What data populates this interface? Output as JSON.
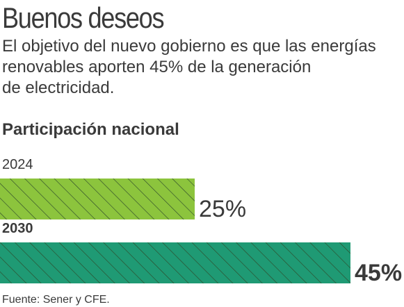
{
  "title": "Buenos deseos",
  "subtitle_lines": [
    "El objetivo del nuevo gobierno es que las energías",
    "renovables aporten 45% de la generación",
    "de electricidad."
  ],
  "section_title": "Participación nacional",
  "source": "Fuente: Sener y CFE.",
  "colors": {
    "bar_2024": "#8cc43d",
    "bar_2030": "#1f9a74",
    "hatch": "#2e4a2a",
    "text": "#3a3a3a"
  },
  "chart_data": {
    "type": "bar",
    "orientation": "horizontal",
    "categories": [
      "2024",
      "2030"
    ],
    "values": [
      25,
      45
    ],
    "value_labels": [
      "25%",
      "45%"
    ],
    "unit": "%",
    "title": "Participación nacional",
    "xlabel": "",
    "ylabel": ""
  }
}
